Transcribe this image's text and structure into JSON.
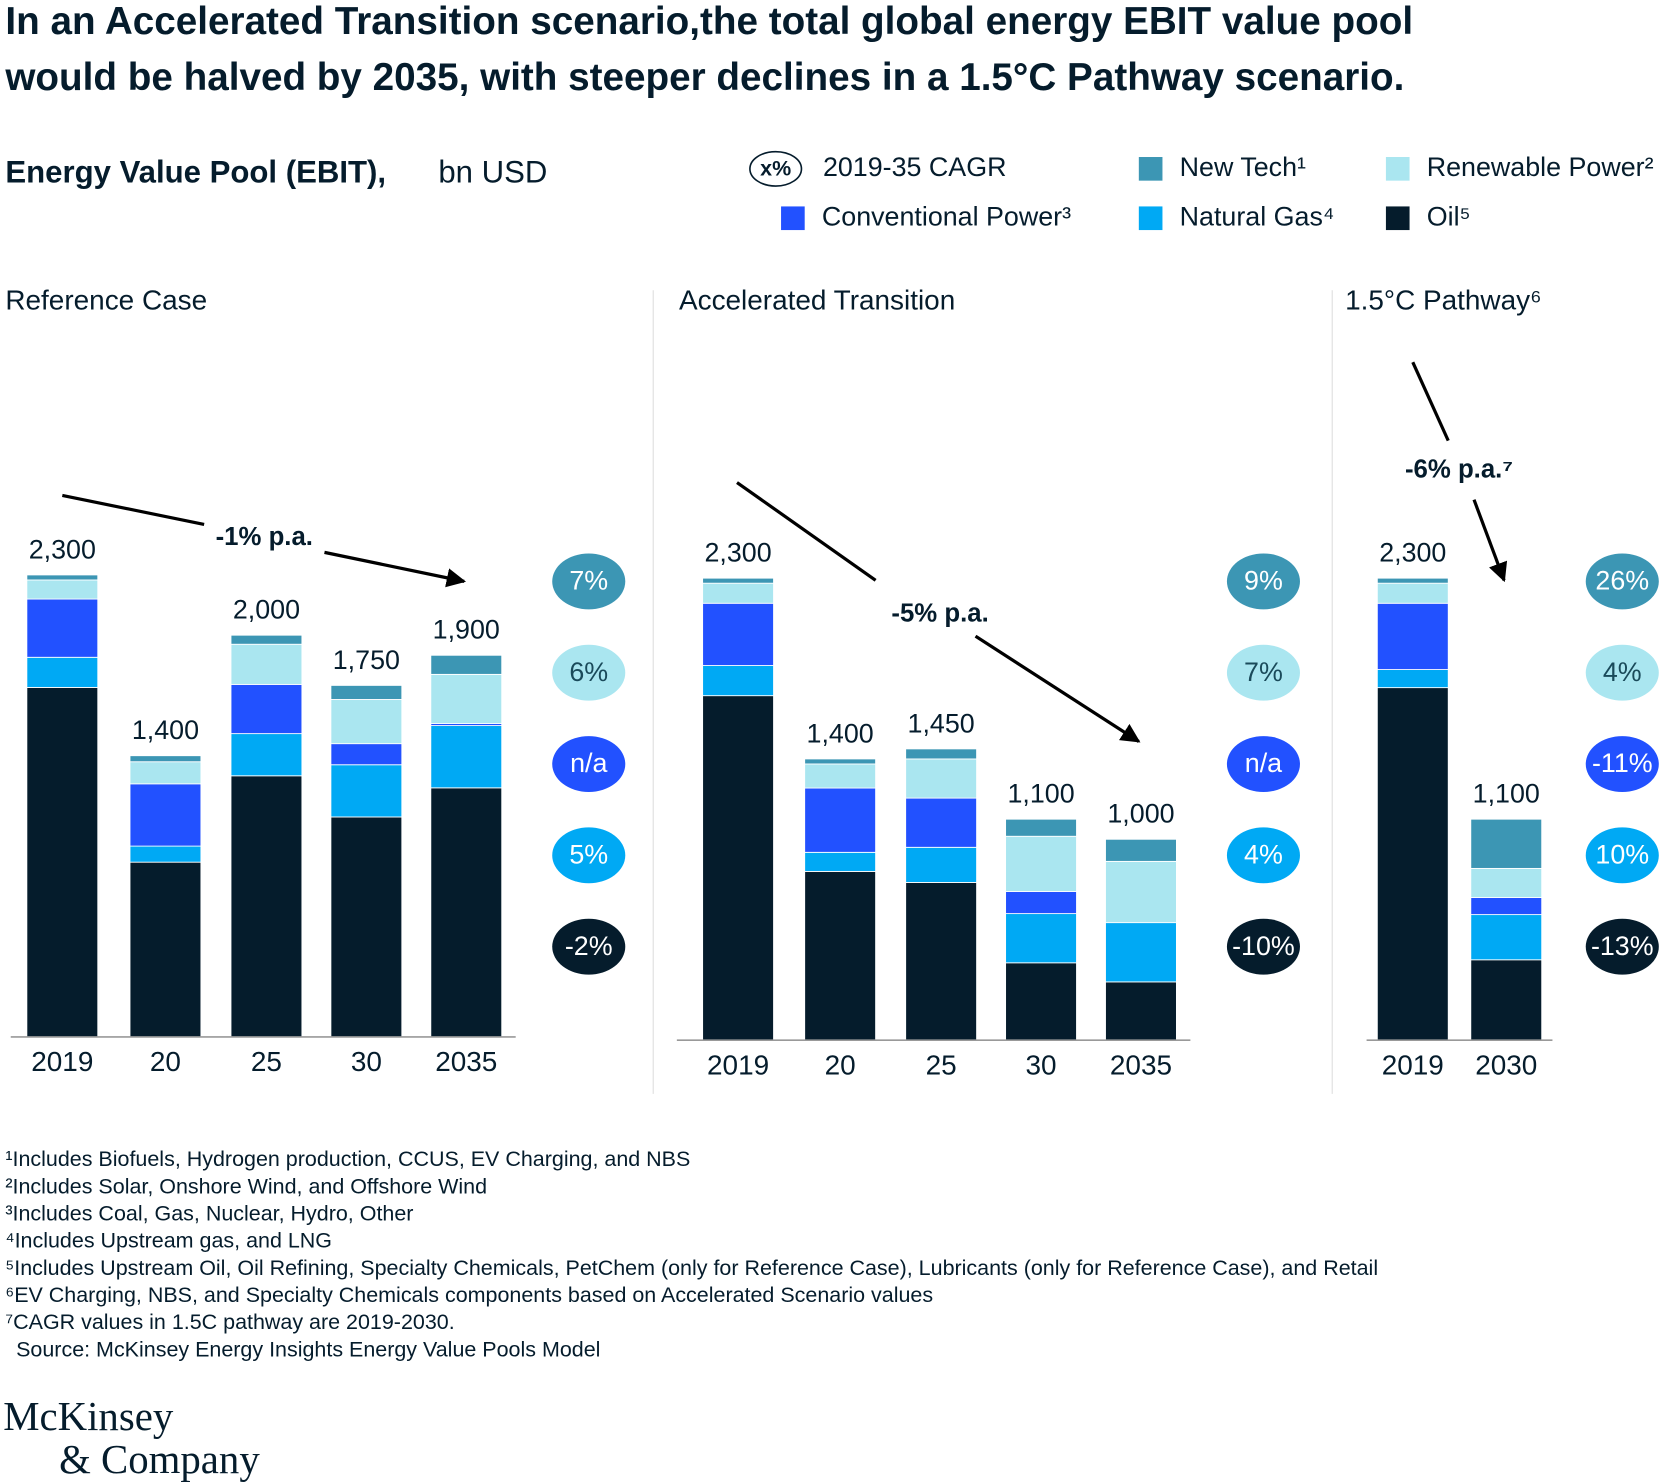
{
  "title": [
    "In an Accelerated Transition scenario,the total global energy EBIT value pool",
    "would be halved by 2035, with steeper declines in a 1.5°C Pathway scenario."
  ],
  "subtitle": "Energy Value Pool (EBIT),",
  "unit": "bn USD",
  "legend_cagr": {
    "symbol": "x%",
    "label": "2019-35 CAGR"
  },
  "chart_data": [
    {
      "type": "stacked_bar",
      "title": "Reference Case",
      "trend_label": "-1% p.a.",
      "categories": [
        "2019",
        "20",
        "25",
        "30",
        "2035"
      ],
      "totals": [
        2300,
        1400,
        2000,
        1750,
        1900
      ],
      "total_labels": [
        "2,300",
        "1,400",
        "2,000",
        "1,750",
        "1,900"
      ],
      "series": [
        {
          "name": "Oil⁵",
          "color": "#051c2c",
          "values": [
            1740,
            870,
            1300,
            1095,
            1240
          ],
          "cagr": "-2%"
        },
        {
          "name": "Natural Gas⁴",
          "color": "#00a9f4",
          "values": [
            150,
            80,
            210,
            260,
            310
          ],
          "cagr": "5%"
        },
        {
          "name": "Conventional Power³",
          "color": "#2251ff",
          "values": [
            290,
            310,
            245,
            105,
            10
          ],
          "cagr": "n/a"
        },
        {
          "name": "Renewable Power²",
          "color": "#aae6f0",
          "values": [
            95,
            110,
            200,
            220,
            245
          ],
          "cagr": "6%"
        },
        {
          "name": "New Tech¹",
          "color": "#3c96b4",
          "values": [
            25,
            30,
            45,
            70,
            95
          ],
          "cagr": "7%"
        }
      ]
    },
    {
      "type": "stacked_bar",
      "title": "Accelerated Transition",
      "trend_label": "-5% p.a.",
      "categories": [
        "2019",
        "20",
        "25",
        "30",
        "2035"
      ],
      "totals": [
        2300,
        1400,
        1450,
        1100,
        1000
      ],
      "total_labels": [
        "2,300",
        "1,400",
        "1,450",
        "1,100",
        "1,000"
      ],
      "series": [
        {
          "name": "Oil⁵",
          "color": "#051c2c",
          "values": [
            1715,
            840,
            785,
            385,
            290
          ],
          "cagr": "-10%"
        },
        {
          "name": "Natural Gas⁴",
          "color": "#00a9f4",
          "values": [
            150,
            95,
            175,
            245,
            295
          ],
          "cagr": "4%"
        },
        {
          "name": "Conventional Power³",
          "color": "#2251ff",
          "values": [
            310,
            320,
            245,
            110,
            0
          ],
          "cagr": "n/a"
        },
        {
          "name": "Renewable Power²",
          "color": "#aae6f0",
          "values": [
            100,
            120,
            195,
            275,
            305
          ],
          "cagr": "7%"
        },
        {
          "name": "New Tech¹",
          "color": "#3c96b4",
          "values": [
            25,
            25,
            50,
            85,
            110
          ],
          "cagr": "9%"
        }
      ]
    },
    {
      "type": "stacked_bar",
      "title": "1.5°C Pathway⁶",
      "trend_label": "-6% p.a.⁷",
      "categories": [
        "2019",
        "2030"
      ],
      "totals": [
        2300,
        1100
      ],
      "total_labels": [
        "2,300",
        "1,100"
      ],
      "series": [
        {
          "name": "Oil⁵",
          "color": "#051c2c",
          "values": [
            1755,
            400
          ],
          "cagr": "-13%"
        },
        {
          "name": "Natural Gas⁴",
          "color": "#00a9f4",
          "values": [
            90,
            225
          ],
          "cagr": "10%"
        },
        {
          "name": "Conventional Power³",
          "color": "#2251ff",
          "values": [
            330,
            85
          ],
          "cagr": "-11%"
        },
        {
          "name": "Renewable Power²",
          "color": "#aae6f0",
          "values": [
            100,
            145
          ],
          "cagr": "4%"
        },
        {
          "name": "New Tech¹",
          "color": "#3c96b4",
          "values": [
            25,
            245
          ],
          "cagr": "26%"
        }
      ]
    }
  ],
  "footnotes": [
    "¹Includes Biofuels, Hydrogen production, CCUS, EV Charging, and NBS",
    "²Includes Solar, Onshore Wind, and Offshore Wind",
    "³Includes Coal, Gas, Nuclear, Hydro, Other",
    "⁴Includes Upstream gas, and LNG",
    "⁵Includes Upstream Oil, Oil Refining, Specialty Chemicals, PetChem (only for Reference Case), Lubricants (only for Reference Case), and Retail",
    "⁶EV Charging, NBS, and Specialty Chemicals components based on Accelerated Scenario values",
    "⁷CAGR values in 1.5C pathway are 2019-2030."
  ],
  "source": "Source: McKinsey Energy Insights Energy Value Pools Model",
  "logo": [
    "McKinsey",
    "& Company"
  ]
}
